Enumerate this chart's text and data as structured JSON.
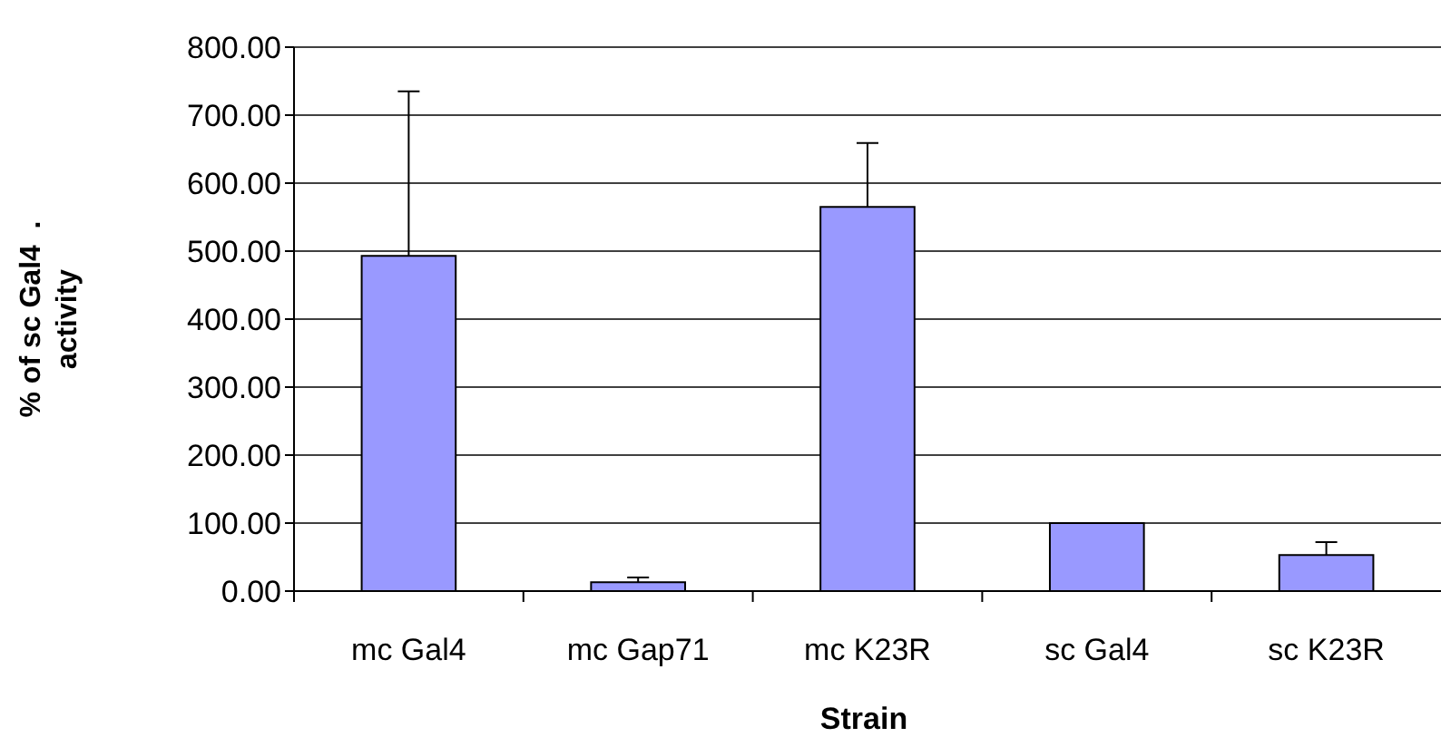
{
  "chart_data": {
    "type": "bar",
    "xlabel": "Strain",
    "ylabel": "% of sc Gal4  .\nactivity",
    "categories": [
      "mc Gal4",
      "mc Gap71",
      "mc K23R",
      "sc Gal4",
      "sc K23R"
    ],
    "values": [
      493,
      13,
      565,
      100,
      53
    ],
    "errors": [
      [
        493,
        735
      ],
      [
        13,
        20
      ],
      [
        565,
        659
      ],
      null,
      [
        53,
        72
      ]
    ],
    "color": "#9999ff",
    "ylim": [
      0,
      800
    ],
    "yticks": [
      {
        "value": 0,
        "label": "0.00"
      },
      {
        "value": 100,
        "label": "100.00"
      },
      {
        "value": 200,
        "label": "200.00"
      },
      {
        "value": 300,
        "label": "300.00"
      },
      {
        "value": 400,
        "label": "400.00"
      },
      {
        "value": 500,
        "label": "500.00"
      },
      {
        "value": 600,
        "label": "600.00"
      },
      {
        "value": 700,
        "label": "700.00"
      },
      {
        "value": 800,
        "label": "800.00"
      }
    ],
    "grid": "y"
  }
}
